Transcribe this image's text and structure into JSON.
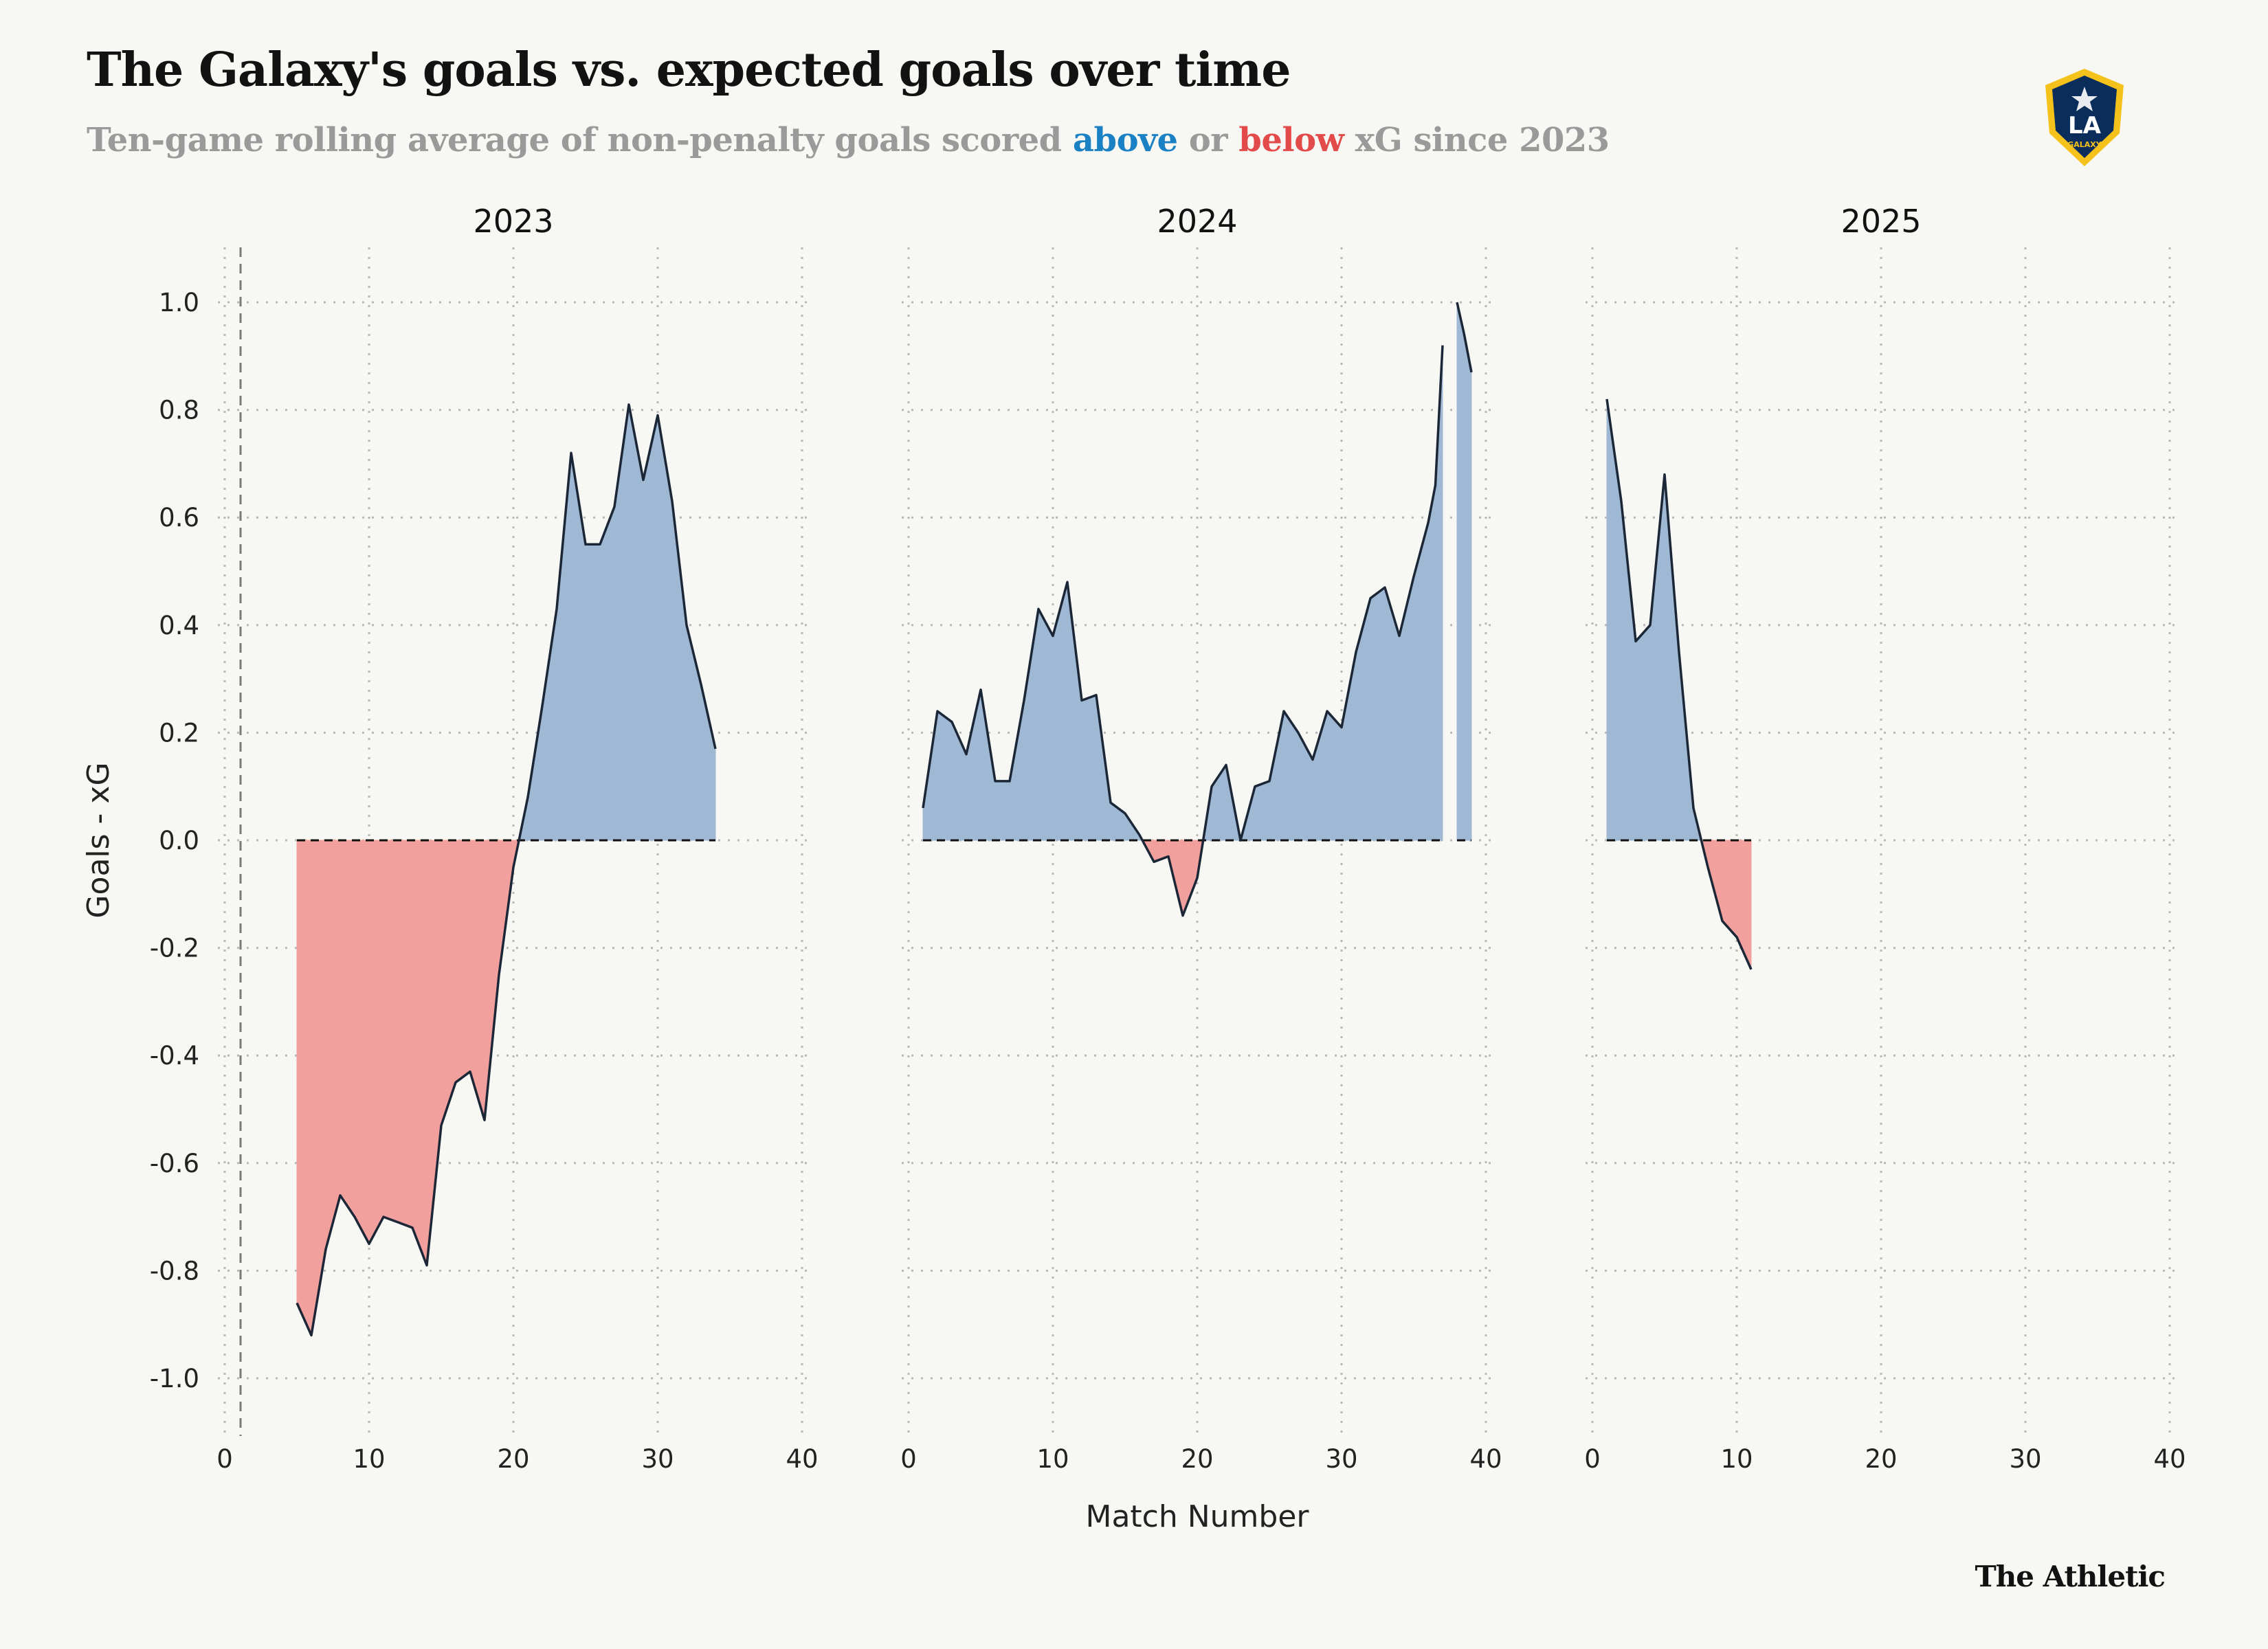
{
  "header": {
    "title": "The Galaxy's goals vs. expected goals over time",
    "subtitle_pre": "Ten-game rolling average of non-penalty goals scored ",
    "subtitle_above": "above",
    "subtitle_mid": " or ",
    "subtitle_below": "below",
    "subtitle_post": " xG since 2023"
  },
  "logo": {
    "text": "LA",
    "subtext": "GALAXY",
    "icon": "la-galaxy-crest-icon"
  },
  "credit": "The Athletic",
  "colors": {
    "above_fill": "#9fb8d3",
    "below_fill": "#f2a09e",
    "line": "#1b2636",
    "above_text": "#1a82c4",
    "below_text": "#e34b4b",
    "grid": "#b8b8b8"
  },
  "chart_data": {
    "type": "area",
    "xlabel": "Match Number",
    "ylabel": "Goals - xG",
    "ylim": [
      -1.1,
      1.1
    ],
    "xlim": [
      0,
      40
    ],
    "yticks": [
      "1.0",
      "0.8",
      "0.6",
      "0.4",
      "0.2",
      "0.0",
      "-0.2",
      "-0.4",
      "-0.6",
      "-0.8",
      "-1.0"
    ],
    "ytick_values": [
      1.0,
      0.8,
      0.6,
      0.4,
      0.2,
      0.0,
      -0.2,
      -0.4,
      -0.6,
      -0.8,
      -1.0
    ],
    "xticks": [
      "0",
      "10",
      "20",
      "30",
      "40"
    ],
    "xtick_values": [
      0,
      10,
      20,
      30,
      40
    ],
    "grid": true,
    "panels": [
      {
        "title": "2023",
        "segments": [
          {
            "x": [
              5,
              6,
              7,
              8,
              9,
              10,
              11,
              12,
              13,
              14,
              15,
              16,
              17,
              18,
              19,
              20,
              21,
              22,
              23,
              24,
              25,
              26,
              27,
              28,
              29,
              30,
              31,
              32,
              33,
              34
            ],
            "y": [
              -0.86,
              -0.92,
              -0.76,
              -0.66,
              -0.7,
              -0.75,
              -0.7,
              -0.71,
              -0.72,
              -0.79,
              -0.53,
              -0.45,
              -0.43,
              -0.52,
              -0.25,
              -0.05,
              0.08,
              0.25,
              0.43,
              0.72,
              0.55,
              0.55,
              0.62,
              0.81,
              0.67,
              0.79,
              0.63,
              0.4,
              0.29,
              0.17
            ]
          }
        ]
      },
      {
        "title": "2024",
        "segments": [
          {
            "x": [
              1,
              2,
              3,
              4,
              5,
              6,
              7,
              8,
              9,
              10,
              11,
              12,
              13,
              14,
              15,
              16,
              17,
              18,
              19,
              20,
              21,
              22,
              23,
              24,
              25,
              26,
              27,
              28,
              29,
              30,
              31,
              32,
              33,
              34,
              35,
              36,
              36.5,
              37
            ],
            "y": [
              0.06,
              0.24,
              0.22,
              0.16,
              0.28,
              0.11,
              0.11,
              0.26,
              0.43,
              0.38,
              0.48,
              0.26,
              0.27,
              0.07,
              0.05,
              0.01,
              -0.04,
              -0.03,
              -0.14,
              -0.07,
              0.1,
              0.14,
              0.0,
              0.1,
              0.11,
              0.24,
              0.2,
              0.15,
              0.24,
              0.21,
              0.35,
              0.45,
              0.47,
              0.38,
              0.49,
              0.59,
              0.66,
              0.92
            ]
          },
          {
            "x": [
              38,
              38.5,
              39
            ],
            "y": [
              1.0,
              0.94,
              0.87
            ]
          }
        ]
      },
      {
        "title": "2025",
        "segments": [
          {
            "x": [
              1,
              2,
              3,
              4,
              5,
              6,
              7,
              8,
              9,
              10,
              11
            ],
            "y": [
              0.82,
              0.63,
              0.37,
              0.4,
              0.68,
              0.35,
              0.06,
              -0.05,
              -0.15,
              -0.18,
              -0.24
            ]
          }
        ]
      }
    ]
  }
}
